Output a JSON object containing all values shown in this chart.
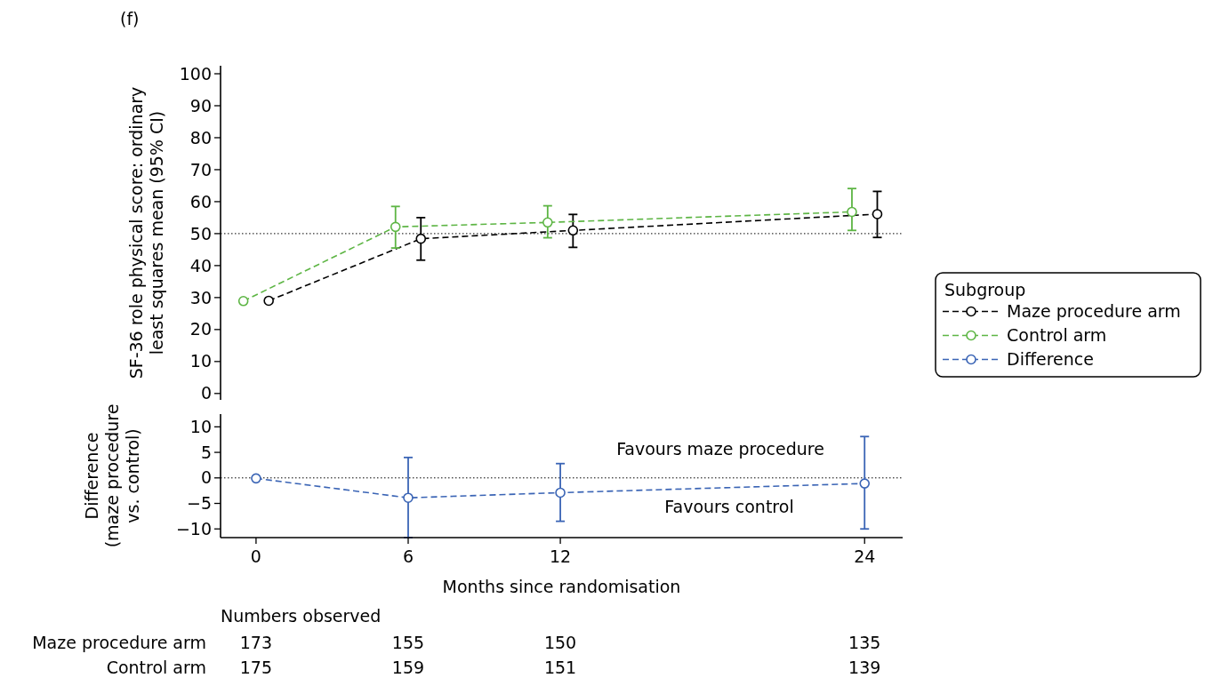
{
  "chart_data": [
    {
      "type": "line",
      "title": "(f)",
      "ylabel": "SF-36 role physical score: ordinary least squares mean (95% CI)",
      "legend_title": "Subgroup",
      "legend": "right",
      "marker": "circle",
      "line_style": "dashed",
      "tick_labels": "y",
      "xlim": [
        -1.4,
        25.5
      ],
      "ylim": [
        -2,
        102.5
      ],
      "yticks": [
        0,
        10,
        20,
        30,
        40,
        50,
        60,
        70,
        80,
        90,
        100
      ],
      "ref_lines": [
        {
          "axis": "y",
          "value": 50,
          "line_style": "dotted",
          "color": "#000000"
        }
      ],
      "series": [
        {
          "name": "Maze procedure arm",
          "color": "#000000",
          "x": [
            0.5,
            6.5,
            12.5,
            24.5
          ],
          "values": [
            29,
            48.4,
            51,
            56.1
          ],
          "errors": [
            null,
            [
              41.7,
              55
            ],
            [
              45.7,
              56
            ],
            [
              48.8,
              63.2
            ]
          ]
        },
        {
          "name": "Control arm",
          "color": "#5db544",
          "x": [
            -0.5,
            5.5,
            11.5,
            23.5
          ],
          "values": [
            28.9,
            52.1,
            53.5,
            56.8
          ],
          "errors": [
            null,
            [
              45.5,
              58.5
            ],
            [
              48.7,
              58.7
            ],
            [
              51,
              64.1
            ]
          ]
        }
      ]
    },
    {
      "type": "line",
      "ylabel": "Difference (maze procedure vs. control)",
      "xlabel": "Months since randomisation",
      "legend": "right",
      "marker": "circle",
      "line_style": "dashed",
      "xlim": [
        -1.4,
        25.5
      ],
      "xticks": [
        0,
        6,
        12,
        24
      ],
      "ylim": [
        -11.7,
        12.5
      ],
      "yticks": [
        {
          "value": -10,
          "label": "−10"
        },
        {
          "value": -5,
          "label": "−5"
        },
        0,
        5,
        10
      ],
      "ref_lines": [
        {
          "axis": "y",
          "value": 0,
          "line_style": "dotted",
          "color": "#000000"
        }
      ],
      "annotations": [
        "Favours maze procedure",
        "Favours control",
        "Numbers observed",
        "Maze procedure arm",
        "173",
        "155",
        "150",
        "135",
        "Control arm",
        "175",
        "159",
        "151",
        "139"
      ],
      "series": [
        {
          "name": "Difference",
          "color": "#3a64b5",
          "x": [
            0,
            6,
            12,
            24
          ],
          "values": [
            -0.1,
            -3.9,
            -2.9,
            -1.1
          ],
          "errors": [
            null,
            [
              -11.7,
              4
            ],
            [
              -8.5,
              2.8
            ],
            [
              -10,
              8.1
            ]
          ]
        }
      ]
    }
  ]
}
